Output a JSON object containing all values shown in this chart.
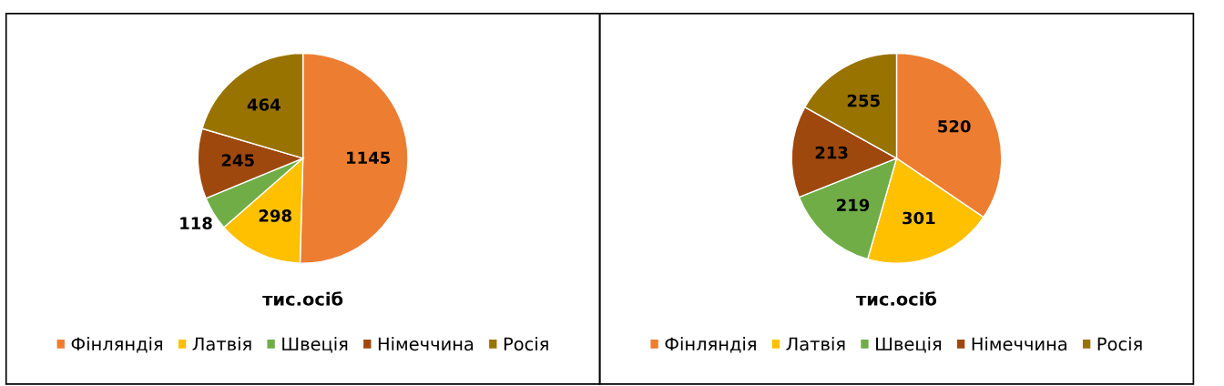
{
  "chart_data": [
    {
      "type": "pie",
      "xlabel": "тис.осіб",
      "categories": [
        "Фінляндія",
        "Латвія",
        "Швеція",
        "Німеччина",
        "Росія"
      ],
      "values": [
        1145,
        298,
        118,
        245,
        464
      ],
      "colors": [
        "#ed7d31",
        "#ffc000",
        "#70ad47",
        "#9e480e",
        "#997300"
      ],
      "data_labels": true,
      "legend": "bottom"
    },
    {
      "type": "pie",
      "xlabel": "тис.осіб",
      "categories": [
        "Фінляндія",
        "Латвія",
        "Швеція",
        "Німеччина",
        "Росія"
      ],
      "values": [
        520,
        301,
        219,
        213,
        255
      ],
      "colors": [
        "#ed7d31",
        "#ffc000",
        "#70ad47",
        "#9e480e",
        "#997300"
      ],
      "data_labels": true,
      "legend": "bottom"
    }
  ]
}
